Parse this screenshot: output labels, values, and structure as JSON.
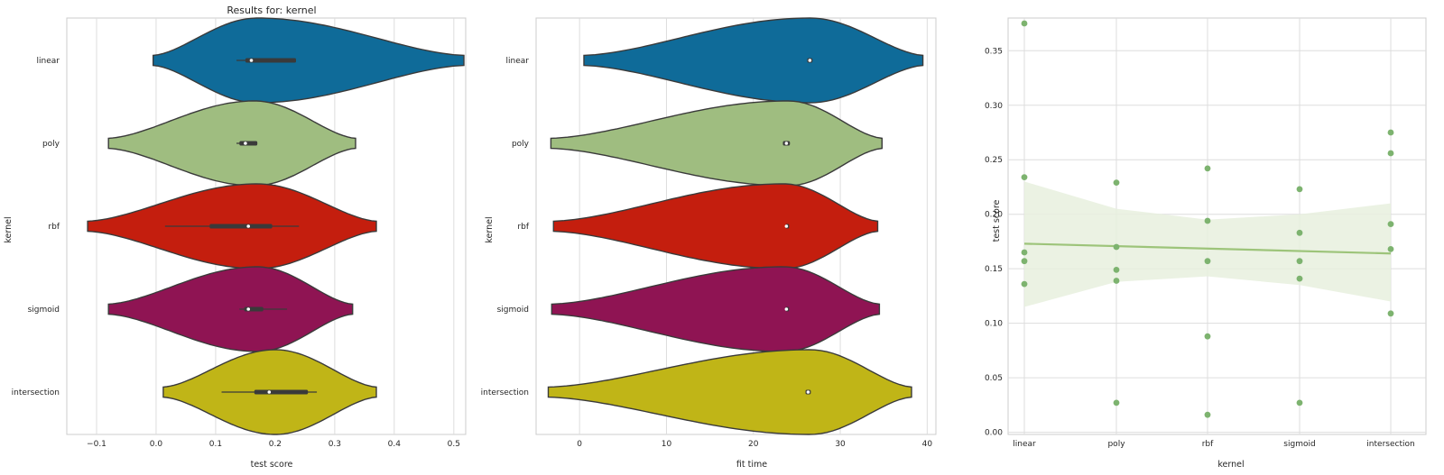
{
  "chart_data": [
    {
      "type": "violin",
      "title": "Results for: kernel",
      "xlabel": "test score",
      "ylabel": "kernel",
      "xlim": [
        -0.15,
        0.52
      ],
      "xticks": [
        -0.1,
        0.0,
        0.1,
        0.2,
        0.3,
        0.4,
        0.5
      ],
      "xtick_labels": [
        "−0.1",
        "0.0",
        "0.1",
        "0.2",
        "0.3",
        "0.4",
        "0.5"
      ],
      "grid": true,
      "categories": [
        "linear",
        "poly",
        "rbf",
        "sigmoid",
        "intersection"
      ],
      "colors": [
        "#0f6b99",
        "#9fbd80",
        "#c41e0e",
        "#8f1453",
        "#c0b517"
      ],
      "violins": [
        {
          "category": "linear",
          "min": -0.005,
          "max": 0.517,
          "peak": 0.17,
          "whisker": [
            0.135,
            0.235
          ],
          "box": [
            0.15,
            0.235
          ],
          "median": 0.16
        },
        {
          "category": "poly",
          "min": -0.08,
          "max": 0.335,
          "peak": 0.165,
          "whisker": [
            0.135,
            0.17
          ],
          "box": [
            0.14,
            0.17
          ],
          "median": 0.15
        },
        {
          "category": "rbf",
          "min": -0.115,
          "max": 0.37,
          "peak": 0.17,
          "whisker": [
            0.015,
            0.24
          ],
          "box": [
            0.09,
            0.195
          ],
          "median": 0.155
        },
        {
          "category": "sigmoid",
          "min": -0.08,
          "max": 0.33,
          "peak": 0.17,
          "whisker": [
            0.14,
            0.22
          ],
          "box": [
            0.148,
            0.18
          ],
          "median": 0.155
        },
        {
          "category": "intersection",
          "min": 0.012,
          "max": 0.37,
          "peak": 0.2,
          "whisker": [
            0.11,
            0.27
          ],
          "box": [
            0.165,
            0.255
          ],
          "median": 0.19
        }
      ]
    },
    {
      "type": "violin",
      "title": "",
      "xlabel": "fit time",
      "ylabel": "kernel",
      "xlim": [
        -5,
        41
      ],
      "xticks": [
        0,
        10,
        20,
        30,
        40
      ],
      "xtick_labels": [
        "0",
        "10",
        "20",
        "30",
        "40"
      ],
      "grid": true,
      "categories": [
        "linear",
        "poly",
        "rbf",
        "sigmoid",
        "intersection"
      ],
      "colors": [
        "#0f6b99",
        "#9fbd80",
        "#c41e0e",
        "#8f1453",
        "#c0b517"
      ],
      "violins": [
        {
          "category": "linear",
          "min": 0.5,
          "max": 39.5,
          "peak": 26.5,
          "whisker": [
            26.2,
            26.8
          ],
          "box": [
            26.2,
            26.8
          ],
          "median": 26.5
        },
        {
          "category": "poly",
          "min": -3.3,
          "max": 34.8,
          "peak": 24,
          "whisker": [
            23.4,
            24.2
          ],
          "box": [
            23.4,
            24.2
          ],
          "median": 23.8
        },
        {
          "category": "rbf",
          "min": -3,
          "max": 34.3,
          "peak": 23.5,
          "whisker": [
            23.7,
            23.9
          ],
          "box": [
            23.7,
            23.9
          ],
          "median": 23.8
        },
        {
          "category": "sigmoid",
          "min": -3.2,
          "max": 34.5,
          "peak": 23.5,
          "whisker": [
            23.7,
            23.9
          ],
          "box": [
            23.7,
            23.9
          ],
          "median": 23.8
        },
        {
          "category": "intersection",
          "min": -3.6,
          "max": 38.2,
          "peak": 26.5,
          "whisker": [
            26,
            26.6
          ],
          "box": [
            26,
            26.6
          ],
          "median": 26.3
        }
      ]
    },
    {
      "type": "scatter",
      "title": "",
      "xlabel": "kernel",
      "ylabel": "test score",
      "ylim": [
        -0.002,
        0.38
      ],
      "yticks": [
        0.0,
        0.05,
        0.1,
        0.15,
        0.2,
        0.25,
        0.3,
        0.35
      ],
      "ytick_labels": [
        "0.00",
        "0.05",
        "0.10",
        "0.15",
        "0.20",
        "0.25",
        "0.30",
        "0.35"
      ],
      "grid": true,
      "categories": [
        "linear",
        "poly",
        "rbf",
        "sigmoid",
        "intersection"
      ],
      "point_color": "#7db36f",
      "points": [
        {
          "x": "linear",
          "y": 0.375
        },
        {
          "x": "linear",
          "y": 0.234
        },
        {
          "x": "linear",
          "y": 0.165
        },
        {
          "x": "linear",
          "y": 0.157
        },
        {
          "x": "linear",
          "y": 0.136
        },
        {
          "x": "poly",
          "y": 0.229
        },
        {
          "x": "poly",
          "y": 0.17
        },
        {
          "x": "poly",
          "y": 0.149
        },
        {
          "x": "poly",
          "y": 0.139
        },
        {
          "x": "poly",
          "y": 0.027
        },
        {
          "x": "rbf",
          "y": 0.242
        },
        {
          "x": "rbf",
          "y": 0.194
        },
        {
          "x": "rbf",
          "y": 0.157
        },
        {
          "x": "rbf",
          "y": 0.088
        },
        {
          "x": "rbf",
          "y": 0.016
        },
        {
          "x": "sigmoid",
          "y": 0.223
        },
        {
          "x": "sigmoid",
          "y": 0.183
        },
        {
          "x": "sigmoid",
          "y": 0.157
        },
        {
          "x": "sigmoid",
          "y": 0.141
        },
        {
          "x": "sigmoid",
          "y": 0.027
        },
        {
          "x": "intersection",
          "y": 0.275
        },
        {
          "x": "intersection",
          "y": 0.256
        },
        {
          "x": "intersection",
          "y": 0.191
        },
        {
          "x": "intersection",
          "y": 0.168
        },
        {
          "x": "intersection",
          "y": 0.109
        }
      ],
      "regression": {
        "y_start": 0.173,
        "y_end": 0.164,
        "color": "#9dc47a"
      },
      "confidence_band": {
        "upper": [
          0.23,
          0.205,
          0.195,
          0.2,
          0.21
        ],
        "lower": [
          0.115,
          0.138,
          0.143,
          0.135,
          0.12
        ],
        "color": "#e8f0de"
      }
    }
  ]
}
